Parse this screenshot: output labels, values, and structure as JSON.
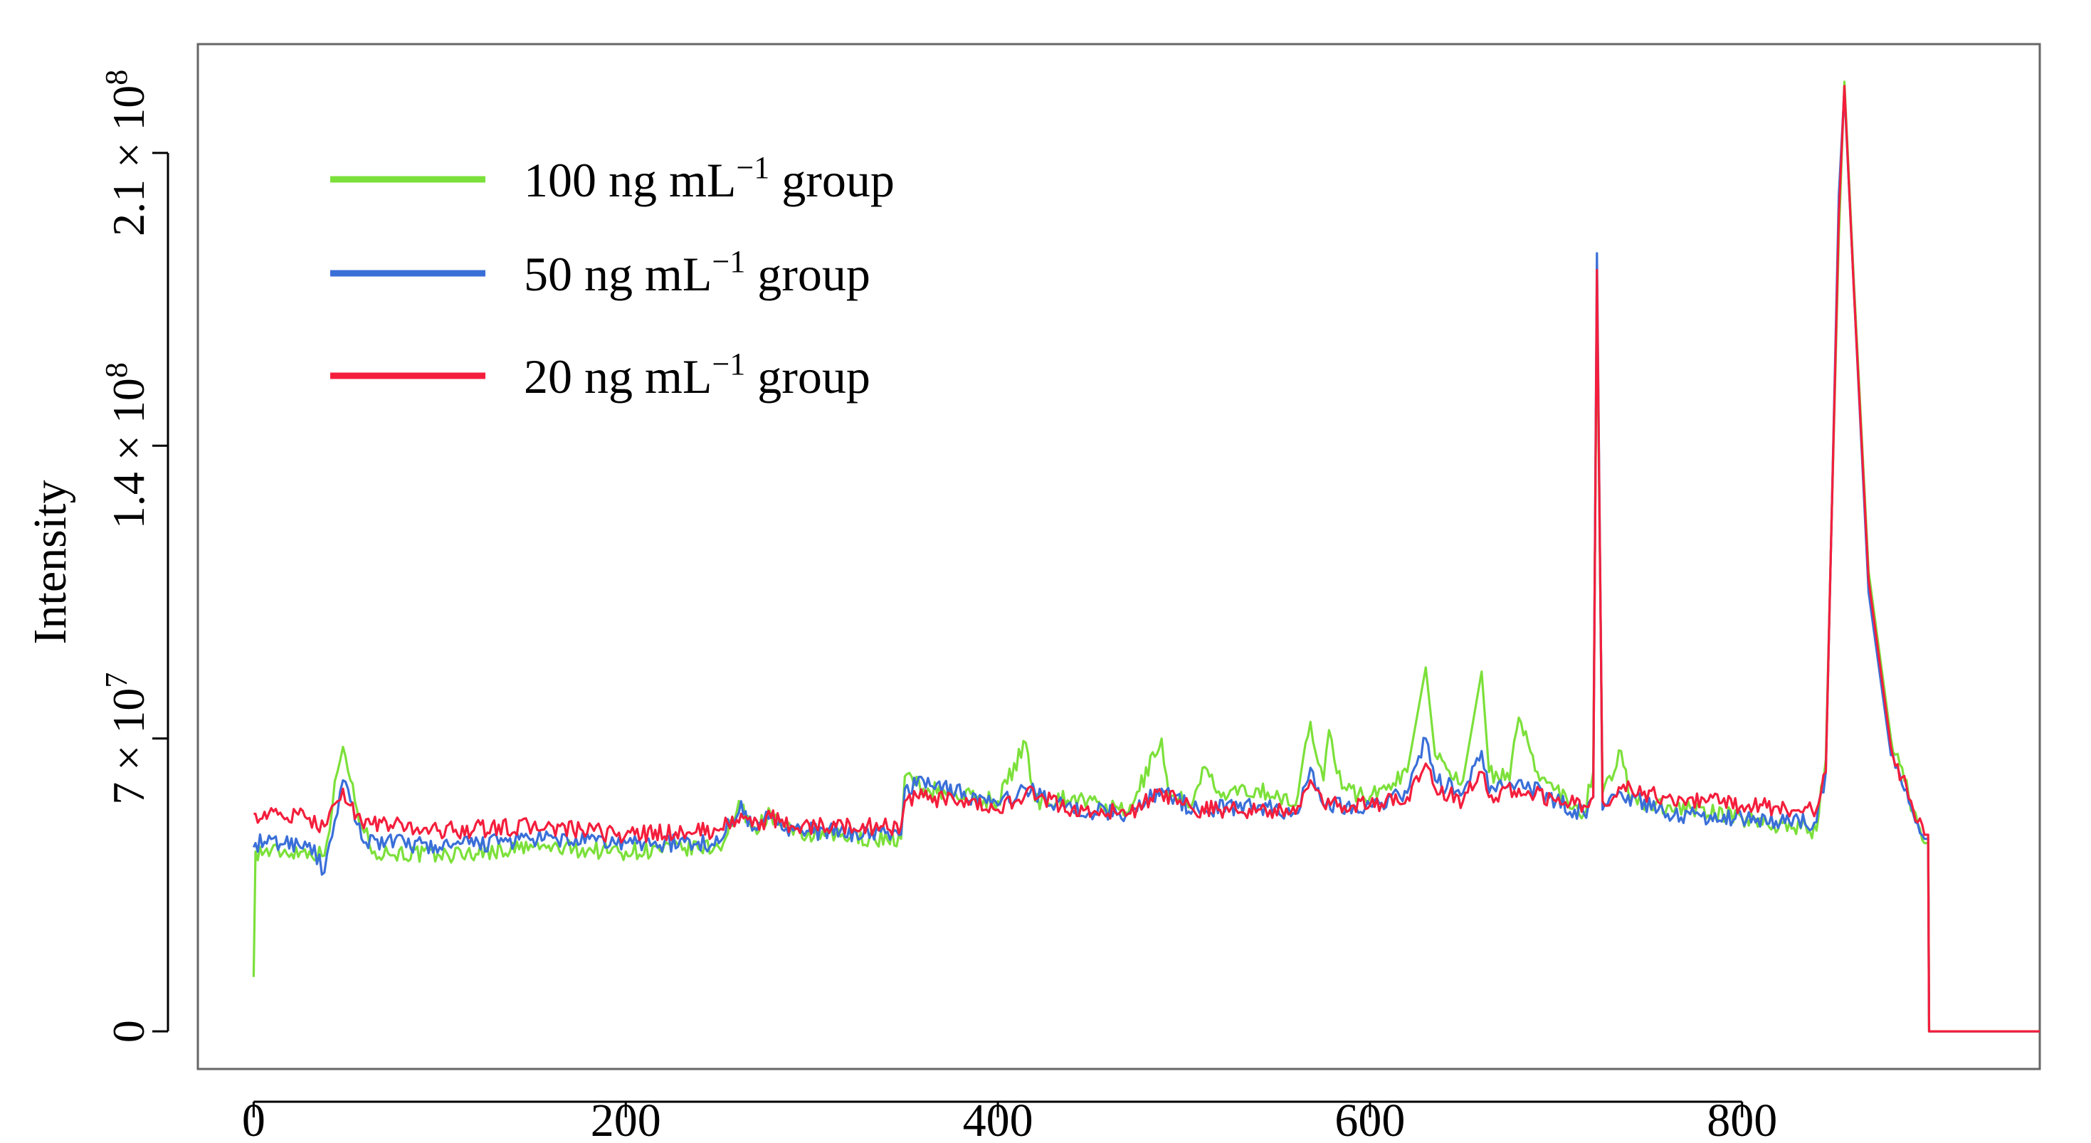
{
  "chart_data": {
    "type": "line",
    "title": "",
    "xlabel": "",
    "ylabel": "Intensity",
    "xlim": [
      -30,
      960
    ],
    "ylim": [
      -9000000,
      236000000
    ],
    "grid": false,
    "legend_position": "top-left",
    "x_ticks": [
      {
        "value": 0,
        "label": "0"
      },
      {
        "value": 200,
        "label": "200"
      },
      {
        "value": 400,
        "label": "400"
      },
      {
        "value": 600,
        "label": "600"
      },
      {
        "value": 800,
        "label": "800"
      }
    ],
    "y_ticks": [
      {
        "value": 0,
        "label": "0"
      },
      {
        "value": 70000000,
        "label": "7 × 10",
        "exponent": "7"
      },
      {
        "value": 140000000,
        "label": "1.4 × 10",
        "exponent": "8"
      },
      {
        "value": 210000000,
        "label": "2.1 × 10",
        "exponent": "8"
      }
    ],
    "series": [
      {
        "name": "100 ng mL",
        "name_sup": "−1",
        "name_suffix": " group",
        "color": "#7CE03A",
        "points": [
          [
            0,
            13000000
          ],
          [
            1,
            43000000
          ],
          [
            30,
            43000000
          ],
          [
            38,
            42000000
          ],
          [
            45,
            62000000
          ],
          [
            48,
            68000000
          ],
          [
            52,
            60000000
          ],
          [
            58,
            49000000
          ],
          [
            65,
            43000000
          ],
          [
            100,
            42000000
          ],
          [
            150,
            44000000
          ],
          [
            200,
            43000000
          ],
          [
            250,
            44000000
          ],
          [
            262,
            54000000
          ],
          [
            268,
            48000000
          ],
          [
            278,
            52000000
          ],
          [
            290,
            47000000
          ],
          [
            348,
            46000000
          ],
          [
            350,
            61000000
          ],
          [
            360,
            58000000
          ],
          [
            400,
            55000000
          ],
          [
            415,
            69000000
          ],
          [
            420,
            55000000
          ],
          [
            440,
            56000000
          ],
          [
            470,
            52000000
          ],
          [
            488,
            70000000
          ],
          [
            492,
            56000000
          ],
          [
            505,
            55000000
          ],
          [
            510,
            63000000
          ],
          [
            520,
            56000000
          ],
          [
            540,
            58000000
          ],
          [
            560,
            54000000
          ],
          [
            568,
            74000000
          ],
          [
            575,
            60000000
          ],
          [
            578,
            72000000
          ],
          [
            585,
            58000000
          ],
          [
            600,
            56000000
          ],
          [
            620,
            62000000
          ],
          [
            630,
            87000000
          ],
          [
            635,
            66000000
          ],
          [
            650,
            60000000
          ],
          [
            660,
            86000000
          ],
          [
            664,
            62000000
          ],
          [
            675,
            60000000
          ],
          [
            680,
            75000000
          ],
          [
            690,
            62000000
          ],
          [
            700,
            58000000
          ],
          [
            715,
            52000000
          ],
          [
            720,
            62000000
          ],
          [
            722,
            176000000
          ],
          [
            725,
            57000000
          ],
          [
            735,
            67000000
          ],
          [
            740,
            55000000
          ],
          [
            760,
            54000000
          ],
          [
            800,
            51000000
          ],
          [
            840,
            48000000
          ],
          [
            845,
            65000000
          ],
          [
            848,
            120000000
          ],
          [
            852,
            190000000
          ],
          [
            855,
            227000000
          ],
          [
            860,
            180000000
          ],
          [
            868,
            110000000
          ],
          [
            880,
            70000000
          ],
          [
            892,
            53000000
          ],
          [
            898,
            45000000
          ],
          [
            900,
            45000000
          ],
          [
            900.5,
            0
          ],
          [
            960,
            0
          ]
        ]
      },
      {
        "name": "50 ng mL",
        "name_sup": "−1",
        "name_suffix": " group",
        "color": "#3A6FD8",
        "points": [
          [
            0,
            44000000
          ],
          [
            1,
            45000000
          ],
          [
            30,
            45000000
          ],
          [
            38,
            38000000
          ],
          [
            45,
            52000000
          ],
          [
            48,
            60000000
          ],
          [
            52,
            55000000
          ],
          [
            58,
            46000000
          ],
          [
            100,
            44000000
          ],
          [
            150,
            46000000
          ],
          [
            200,
            45000000
          ],
          [
            250,
            45000000
          ],
          [
            262,
            55000000
          ],
          [
            268,
            48000000
          ],
          [
            278,
            52000000
          ],
          [
            290,
            48000000
          ],
          [
            348,
            47000000
          ],
          [
            350,
            58000000
          ],
          [
            360,
            60000000
          ],
          [
            400,
            54000000
          ],
          [
            415,
            58000000
          ],
          [
            440,
            53000000
          ],
          [
            470,
            52000000
          ],
          [
            488,
            58000000
          ],
          [
            505,
            53000000
          ],
          [
            540,
            54000000
          ],
          [
            560,
            52000000
          ],
          [
            568,
            63000000
          ],
          [
            575,
            54000000
          ],
          [
            600,
            54000000
          ],
          [
            620,
            57000000
          ],
          [
            630,
            70000000
          ],
          [
            635,
            60000000
          ],
          [
            650,
            57000000
          ],
          [
            660,
            67000000
          ],
          [
            664,
            57000000
          ],
          [
            680,
            60000000
          ],
          [
            700,
            55000000
          ],
          [
            715,
            52000000
          ],
          [
            720,
            56000000
          ],
          [
            722,
            186000000
          ],
          [
            725,
            53000000
          ],
          [
            735,
            57000000
          ],
          [
            760,
            52000000
          ],
          [
            800,
            51000000
          ],
          [
            840,
            50000000
          ],
          [
            845,
            62000000
          ],
          [
            848,
            120000000
          ],
          [
            852,
            200000000
          ],
          [
            855,
            225000000
          ],
          [
            860,
            178000000
          ],
          [
            868,
            105000000
          ],
          [
            880,
            66000000
          ],
          [
            892,
            52000000
          ],
          [
            898,
            46000000
          ],
          [
            900,
            46000000
          ],
          [
            900.5,
            0
          ],
          [
            960,
            0
          ]
        ]
      },
      {
        "name": "20 ng mL",
        "name_sup": "−1",
        "name_suffix": " group",
        "color": "#F41E3C",
        "points": [
          [
            0,
            52000000
          ],
          [
            1,
            52000000
          ],
          [
            30,
            51000000
          ],
          [
            38,
            49000000
          ],
          [
            45,
            55000000
          ],
          [
            48,
            58000000
          ],
          [
            52,
            54000000
          ],
          [
            58,
            50000000
          ],
          [
            100,
            48000000
          ],
          [
            150,
            49000000
          ],
          [
            200,
            47000000
          ],
          [
            250,
            48000000
          ],
          [
            262,
            52000000
          ],
          [
            268,
            49000000
          ],
          [
            278,
            51000000
          ],
          [
            290,
            49000000
          ],
          [
            348,
            49000000
          ],
          [
            350,
            55000000
          ],
          [
            360,
            56000000
          ],
          [
            400,
            53000000
          ],
          [
            415,
            57000000
          ],
          [
            440,
            53000000
          ],
          [
            470,
            52000000
          ],
          [
            488,
            57000000
          ],
          [
            505,
            53000000
          ],
          [
            540,
            53000000
          ],
          [
            560,
            52000000
          ],
          [
            568,
            60000000
          ],
          [
            575,
            54000000
          ],
          [
            600,
            54000000
          ],
          [
            620,
            56000000
          ],
          [
            630,
            64000000
          ],
          [
            635,
            58000000
          ],
          [
            650,
            55000000
          ],
          [
            660,
            62000000
          ],
          [
            664,
            56000000
          ],
          [
            680,
            58000000
          ],
          [
            700,
            55000000
          ],
          [
            715,
            54000000
          ],
          [
            720,
            56000000
          ],
          [
            722,
            182000000
          ],
          [
            725,
            55000000
          ],
          [
            735,
            58000000
          ],
          [
            760,
            56000000
          ],
          [
            800,
            54000000
          ],
          [
            840,
            53000000
          ],
          [
            845,
            62000000
          ],
          [
            848,
            120000000
          ],
          [
            852,
            195000000
          ],
          [
            855,
            226000000
          ],
          [
            860,
            178000000
          ],
          [
            868,
            108000000
          ],
          [
            880,
            68000000
          ],
          [
            892,
            53000000
          ],
          [
            898,
            47000000
          ],
          [
            900,
            47000000
          ],
          [
            900.5,
            0
          ],
          [
            960,
            0
          ]
        ]
      }
    ]
  }
}
